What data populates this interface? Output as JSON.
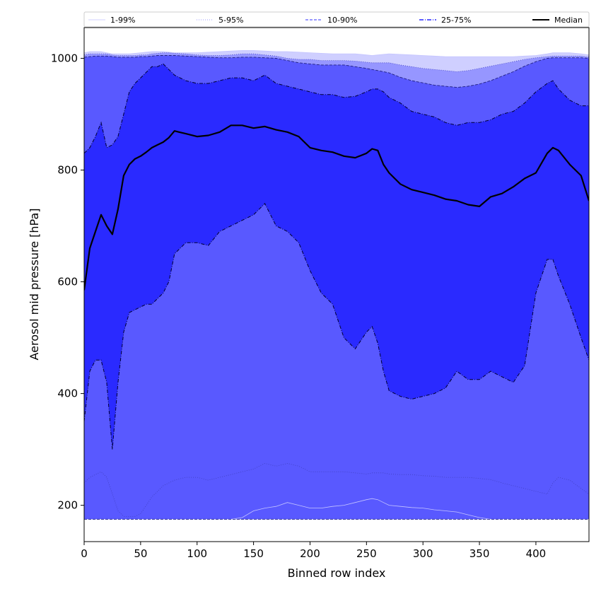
{
  "chart_data": {
    "type": "area",
    "xlabel": "Binned row index",
    "ylabel": "Aerosol mid pressure [hPa]",
    "xlim": [
      0,
      447
    ],
    "ylim": [
      135,
      1055
    ],
    "xticks": [
      0,
      50,
      100,
      150,
      200,
      250,
      300,
      350,
      400
    ],
    "yticks": [
      200,
      400,
      600,
      800,
      1000
    ],
    "grid": false,
    "legend_position": "top",
    "colors": {
      "band_1_99": "#cfcfff",
      "band_5_95": "#9696ff",
      "band_10_90": "#5959ff",
      "band_25_75": "#2a2aff",
      "median": "#000000",
      "axis": "#000000"
    },
    "legend": [
      {
        "label": "1-99%",
        "color": "#d0d0ff",
        "dash": "solid",
        "width": 1
      },
      {
        "label": "5-95%",
        "color": "#9a9aff",
        "dash": "dotted",
        "width": 1
      },
      {
        "label": "10-90%",
        "color": "#5a5aff",
        "dash": "dashed",
        "width": 1.2
      },
      {
        "label": "25-75%",
        "color": "#2a2aff",
        "dash": "dashdot",
        "width": 1.4
      },
      {
        "label": "Median",
        "color": "#000000",
        "dash": "solid",
        "width": 2
      }
    ],
    "x": [
      0,
      5,
      10,
      15,
      20,
      25,
      30,
      35,
      40,
      45,
      50,
      55,
      60,
      65,
      70,
      75,
      80,
      90,
      100,
      110,
      120,
      130,
      140,
      150,
      160,
      170,
      180,
      190,
      200,
      210,
      220,
      230,
      240,
      250,
      255,
      260,
      265,
      270,
      280,
      290,
      300,
      310,
      320,
      330,
      340,
      350,
      360,
      370,
      380,
      390,
      400,
      410,
      415,
      420,
      430,
      440,
      447
    ],
    "series": [
      {
        "name": "1-99%",
        "lower": [
          175,
          175,
          175,
          175,
          175,
          175,
          175,
          175,
          175,
          175,
          175,
          175,
          175,
          175,
          175,
          175,
          175,
          175,
          175,
          175,
          175,
          175,
          178,
          190,
          195,
          198,
          205,
          200,
          195,
          195,
          198,
          200,
          205,
          210,
          212,
          210,
          205,
          200,
          198,
          196,
          195,
          192,
          190,
          188,
          183,
          178,
          175,
          175,
          175,
          175,
          175,
          175,
          175,
          175,
          175,
          175,
          175
        ],
        "upper": [
          1010,
          1012,
          1012,
          1012,
          1010,
          1008,
          1008,
          1008,
          1008,
          1009,
          1010,
          1011,
          1012,
          1012,
          1012,
          1011,
          1010,
          1010,
          1010,
          1011,
          1012,
          1013,
          1014,
          1014,
          1013,
          1012,
          1012,
          1011,
          1010,
          1009,
          1008,
          1008,
          1008,
          1006,
          1005,
          1006,
          1007,
          1008,
          1007,
          1006,
          1005,
          1004,
          1003,
          1003,
          1003,
          1003,
          1003,
          1003,
          1003,
          1004,
          1005,
          1008,
          1010,
          1010,
          1010,
          1008,
          1006
        ]
      },
      {
        "name": "5-95%",
        "lower": [
          240,
          250,
          255,
          260,
          250,
          220,
          190,
          180,
          180,
          180,
          185,
          200,
          215,
          225,
          235,
          240,
          245,
          250,
          250,
          245,
          250,
          255,
          260,
          265,
          275,
          270,
          275,
          270,
          260,
          260,
          260,
          260,
          258,
          256,
          258,
          258,
          258,
          256,
          255,
          255,
          253,
          252,
          250,
          250,
          250,
          248,
          246,
          240,
          235,
          230,
          225,
          220,
          240,
          250,
          245,
          230,
          220
        ],
        "upper": [
          1006,
          1008,
          1008,
          1008,
          1008,
          1006,
          1005,
          1005,
          1005,
          1005,
          1006,
          1006,
          1008,
          1009,
          1010,
          1010,
          1009,
          1008,
          1006,
          1005,
          1005,
          1006,
          1008,
          1008,
          1006,
          1004,
          1000,
          998,
          998,
          996,
          996,
          996,
          995,
          993,
          992,
          992,
          992,
          992,
          988,
          985,
          982,
          980,
          978,
          976,
          978,
          982,
          986,
          990,
          994,
          998,
          1001,
          1003,
          1004,
          1004,
          1004,
          1004,
          1002
        ]
      },
      {
        "name": "10-90%",
        "lower": [
          175,
          175,
          175,
          175,
          175,
          175,
          175,
          175,
          175,
          175,
          175,
          175,
          175,
          175,
          175,
          175,
          175,
          175,
          175,
          175,
          175,
          175,
          175,
          175,
          175,
          175,
          175,
          175,
          175,
          175,
          175,
          175,
          175,
          175,
          175,
          175,
          175,
          175,
          175,
          175,
          175,
          175,
          175,
          175,
          175,
          175,
          175,
          175,
          175,
          175,
          175,
          175,
          175,
          175,
          175,
          175,
          175
        ],
        "upper": [
          1002,
          1003,
          1004,
          1004,
          1004,
          1003,
          1002,
          1002,
          1002,
          1002,
          1003,
          1003,
          1004,
          1005,
          1005,
          1005,
          1005,
          1004,
          1003,
          1002,
          1001,
          1001,
          1002,
          1002,
          1001,
          1000,
          996,
          992,
          990,
          988,
          988,
          988,
          985,
          982,
          980,
          978,
          976,
          974,
          966,
          960,
          956,
          952,
          950,
          948,
          950,
          954,
          960,
          968,
          976,
          986,
          994,
          1000,
          1001,
          1001,
          1001,
          1001,
          1000
        ]
      },
      {
        "name": "25-75%",
        "lower": [
          350,
          440,
          460,
          460,
          420,
          300,
          420,
          510,
          545,
          550,
          555,
          560,
          560,
          570,
          580,
          600,
          650,
          670,
          670,
          665,
          690,
          700,
          710,
          720,
          740,
          700,
          690,
          670,
          620,
          580,
          560,
          500,
          480,
          510,
          520,
          490,
          440,
          405,
          395,
          390,
          395,
          400,
          410,
          440,
          425,
          425,
          440,
          430,
          420,
          450,
          580,
          640,
          640,
          610,
          560,
          500,
          460
        ],
        "upper": [
          830,
          840,
          860,
          885,
          840,
          845,
          860,
          900,
          940,
          955,
          965,
          975,
          985,
          985,
          990,
          980,
          970,
          960,
          955,
          955,
          960,
          965,
          965,
          960,
          970,
          955,
          950,
          945,
          940,
          935,
          935,
          930,
          932,
          940,
          945,
          945,
          940,
          930,
          920,
          905,
          900,
          895,
          885,
          880,
          885,
          885,
          890,
          900,
          905,
          920,
          940,
          955,
          960,
          945,
          925,
          915,
          915
        ]
      },
      {
        "name": "Median",
        "values": [
          585,
          660,
          690,
          720,
          700,
          685,
          730,
          790,
          810,
          820,
          825,
          832,
          840,
          845,
          850,
          858,
          870,
          865,
          860,
          862,
          868,
          880,
          880,
          875,
          878,
          872,
          868,
          860,
          840,
          835,
          832,
          825,
          822,
          830,
          838,
          835,
          810,
          795,
          775,
          765,
          760,
          755,
          748,
          745,
          738,
          735,
          752,
          758,
          770,
          785,
          795,
          830,
          840,
          835,
          810,
          790,
          745
        ]
      }
    ]
  }
}
